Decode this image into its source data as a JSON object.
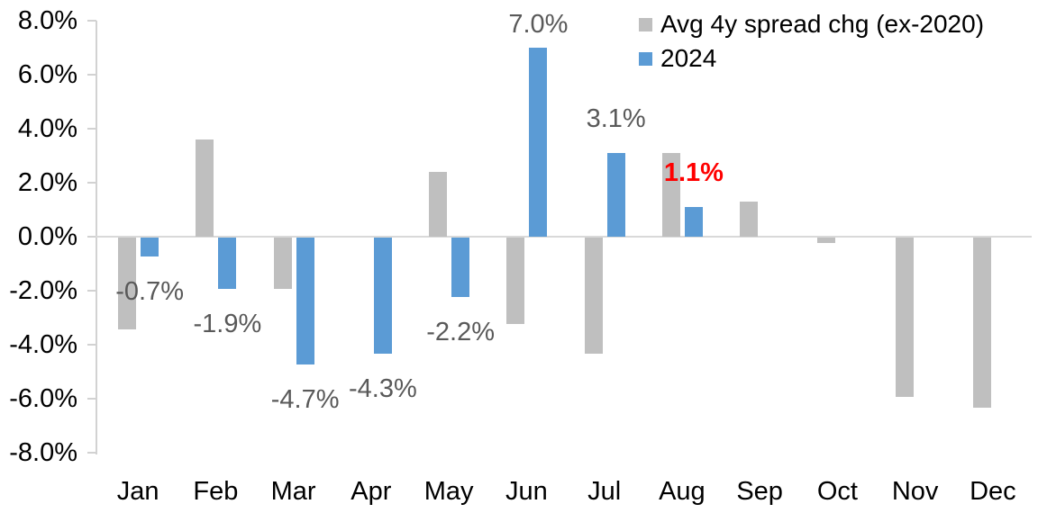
{
  "chart_data": {
    "type": "bar",
    "title": "",
    "xlabel": "",
    "ylabel": "",
    "categories": [
      "Jan",
      "Feb",
      "Mar",
      "Apr",
      "May",
      "Jun",
      "Jul",
      "Aug",
      "Sep",
      "Oct",
      "Nov",
      "Dec"
    ],
    "series": [
      {
        "name": "Avg 4y spread chg (ex-2020)",
        "color": "#BFBFBF",
        "values": [
          -3.4,
          3.6,
          -1.9,
          0.0,
          2.4,
          -3.2,
          -4.3,
          3.1,
          1.3,
          -0.2,
          -5.9,
          -6.3
        ]
      },
      {
        "name": "2024",
        "color": "#5B9BD5",
        "values": [
          -0.7,
          -1.9,
          -4.7,
          -4.3,
          -2.2,
          7.0,
          3.1,
          1.1,
          null,
          null,
          null,
          null
        ],
        "data_labels": [
          {
            "text": "-0.7%",
            "color": "#595959",
            "bold": false
          },
          {
            "text": "-1.9%",
            "color": "#595959",
            "bold": false
          },
          {
            "text": "-4.7%",
            "color": "#595959",
            "bold": false
          },
          {
            "text": "-4.3%",
            "color": "#595959",
            "bold": false
          },
          {
            "text": "-2.2%",
            "color": "#595959",
            "bold": false
          },
          {
            "text": "7.0%",
            "color": "#595959",
            "bold": false
          },
          {
            "text": "3.1%",
            "color": "#595959",
            "bold": false
          },
          {
            "text": "1.1%",
            "color": "#FF0000",
            "bold": true
          },
          null,
          null,
          null,
          null
        ]
      }
    ],
    "ylim": [
      -8,
      8
    ],
    "y_ticks": [
      "8.0%",
      "6.0%",
      "4.0%",
      "2.0%",
      "0.0%",
      "-2.0%",
      "-4.0%",
      "-6.0%",
      "-8.0%"
    ],
    "grid": false,
    "legend_position": "top-right"
  },
  "colors": {
    "axis_line": "#D2D2D2",
    "zero_line": "#D9D9D9",
    "label_gray": "#595959",
    "highlight_red": "#FF0000",
    "text": "#000000",
    "background": "#FFFFFF"
  }
}
